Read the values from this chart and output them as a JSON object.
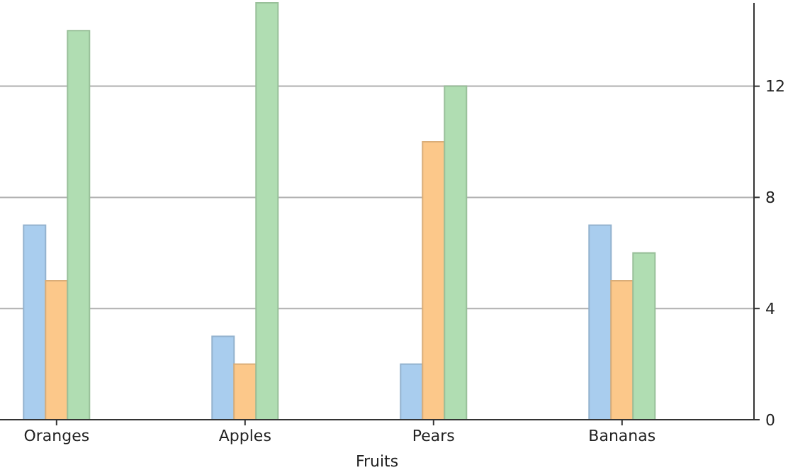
{
  "chart_data": {
    "type": "bar",
    "xlabel": "Fruits",
    "categories": [
      "Oranges",
      "Apples",
      "Pears",
      "Bananas"
    ],
    "series": [
      {
        "color": "#a9cdee",
        "values": [
          7,
          3,
          2,
          7
        ]
      },
      {
        "color": "#fcc88a",
        "values": [
          5,
          2,
          10,
          5
        ]
      },
      {
        "color": "#b0ddb2",
        "values": [
          14,
          15,
          12,
          6
        ]
      }
    ],
    "ylim": [
      0,
      15
    ],
    "yticks": [
      0,
      4,
      8,
      12
    ],
    "grid": "y"
  }
}
